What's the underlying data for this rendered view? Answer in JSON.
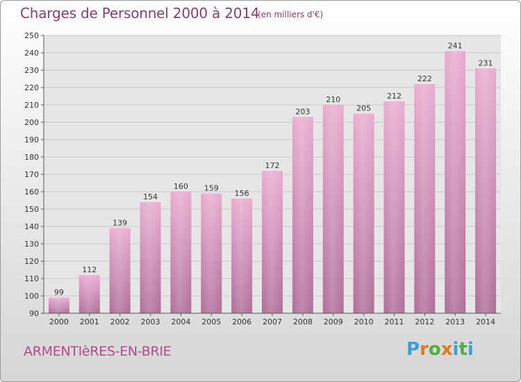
{
  "header": {
    "title": "Charges de Personnel 2000 à 2014",
    "unit": "(en milliers d'€)"
  },
  "footer": {
    "location": "ARMENTIèRES-EN-BRIE",
    "logo_letters": [
      "P",
      "r",
      "o",
      "x",
      "i",
      "t",
      "i"
    ],
    "logo_colors": [
      "#3aa0d8",
      "#e2781f",
      "#4fae3e",
      "#e2781f",
      "#3aa0d8",
      "#4fae3e",
      "#3aa0d8"
    ]
  },
  "colors": {
    "bar_top": "#e9acd0",
    "bar_bottom": "#b06e98",
    "title": "#8a3d6c"
  },
  "chart_data": {
    "type": "bar",
    "title": "Charges de Personnel 2000 à 2014",
    "subtitle": "(en milliers d'€)",
    "categories": [
      "2000",
      "2001",
      "2002",
      "2003",
      "2004",
      "2005",
      "2006",
      "2007",
      "2008",
      "2009",
      "2010",
      "2011",
      "2012",
      "2013",
      "2014"
    ],
    "values": [
      99,
      112,
      139,
      154,
      160,
      159,
      156,
      172,
      203,
      210,
      205,
      212,
      222,
      241,
      231
    ],
    "ylim": [
      90,
      250
    ],
    "yticks": [
      90,
      100,
      110,
      120,
      130,
      140,
      150,
      160,
      170,
      180,
      190,
      200,
      210,
      220,
      230,
      240,
      250
    ],
    "grid": true,
    "xlabel": "",
    "ylabel": ""
  }
}
